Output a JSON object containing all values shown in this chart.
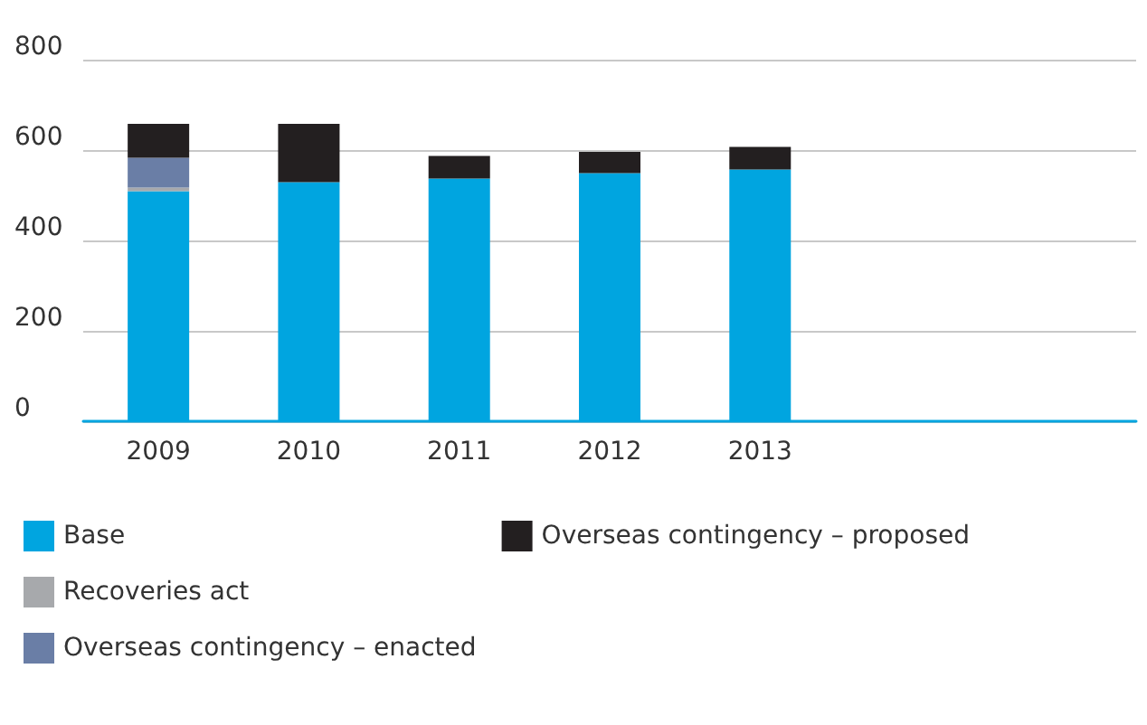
{
  "chart_data": {
    "type": "bar",
    "stacked": true,
    "categories": [
      "2009",
      "2010",
      "2011",
      "2012",
      "2013",
      null,
      null
    ],
    "series": [
      {
        "name": "Base",
        "color": "#00a5e0",
        "values": [
          509,
          529,
          537,
          549,
          557,
          null,
          null
        ]
      },
      {
        "name": "Recoveries act",
        "color": "#a7a9ac",
        "values": [
          8,
          0,
          0,
          0,
          0,
          null,
          null
        ]
      },
      {
        "name": "Overseas contingency – enacted",
        "color": "#6a7ea6",
        "values": [
          66,
          0,
          0,
          0,
          0,
          null,
          null
        ]
      },
      {
        "name": "Overseas contingency – proposed",
        "color": "#231f20",
        "values": [
          75,
          129,
          50,
          47,
          50,
          null,
          null
        ]
      }
    ],
    "ylim": [
      0,
      800
    ],
    "yticks": [
      0,
      200,
      400,
      600,
      800
    ],
    "grid": "y",
    "legend": "bottom left"
  }
}
